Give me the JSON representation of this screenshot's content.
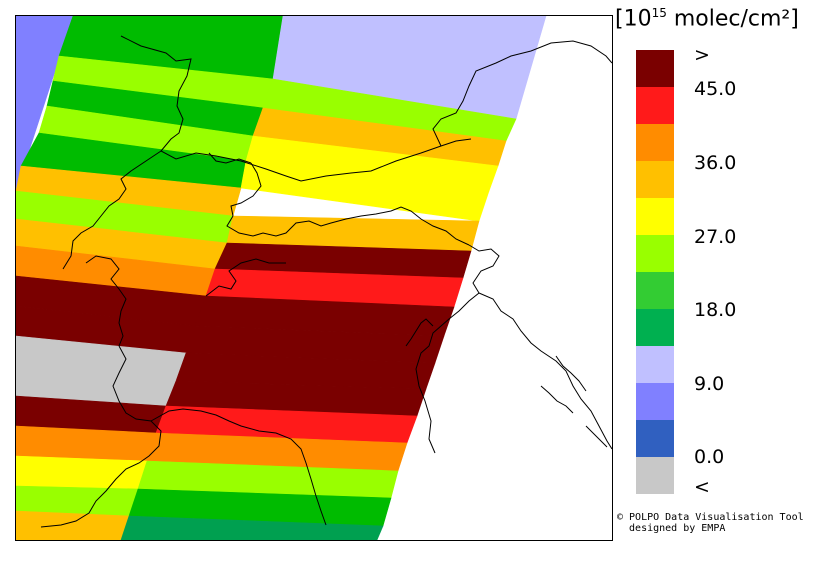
{
  "legend": {
    "unit_base": "[10",
    "unit_exp": "15",
    "unit_rest": " molec/cm²]",
    "ticks": [
      "<",
      "0.0",
      "9.0",
      "18.0",
      "27.0",
      "36.0",
      "45.0",
      ">"
    ],
    "colors": {
      "over": "#7a0000",
      "red": "#ff1a1a",
      "orange": "#ff8c00",
      "amber": "#ffc000",
      "yellow": "#ffff00",
      "lime": "#99ff00",
      "green": "#33cc33",
      "dkgreen": "#00b050",
      "lavender": "#c0c0ff",
      "periwinkle": "#8080ff",
      "blue": "#3060c0",
      "under": "#c8c8c8"
    },
    "bins": [
      "over",
      "red",
      "orange",
      "amber",
      "yellow",
      "lime",
      "green",
      "dkgreen",
      "lavender",
      "periwinkle",
      "blue",
      "under"
    ]
  },
  "credit": {
    "line1": "© POLPO Data Visualisation Tool",
    "line2": "  designed by EMPA"
  },
  "map": {
    "colors": {
      "over": "#7a0000",
      "red": "#ff1a1a",
      "orange": "#ff8c00",
      "amber": "#ffc000",
      "yellow": "#ffff00",
      "lime": "#99ff00",
      "green": "#00bb00",
      "dkgreen": "#00a050",
      "lavender": "#c0c0ff",
      "periwinkle": "#8080ff",
      "grey": "#c8c8c8",
      "border": "#000000"
    }
  }
}
